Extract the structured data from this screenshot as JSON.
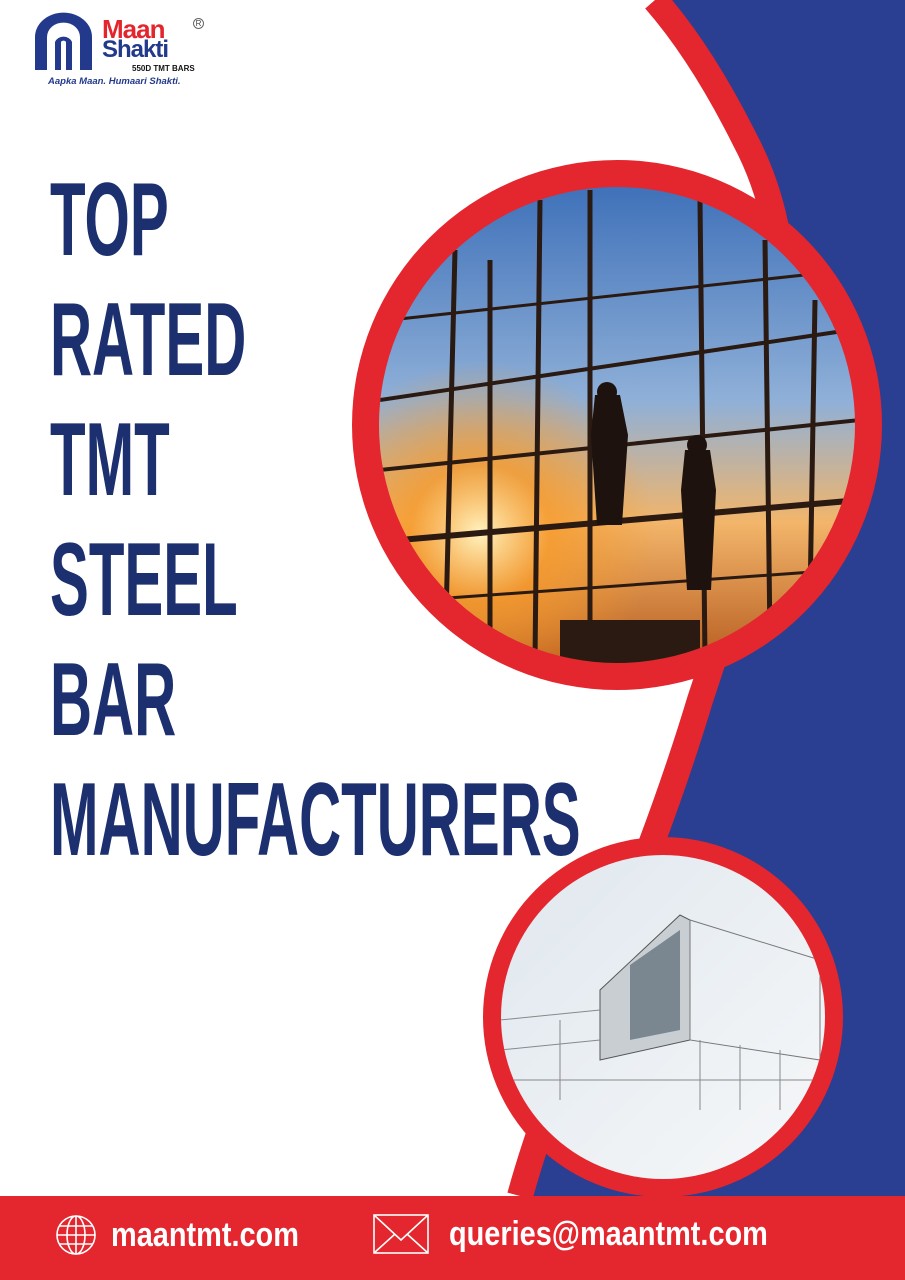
{
  "colors": {
    "navy": "#1c2f6e",
    "blue": "#2a3e92",
    "red": "#e4262e"
  },
  "logo": {
    "brand_line1": "Maan",
    "brand_line2": "Shakti",
    "registered": "R",
    "product": "550D TMT BARS",
    "tagline": "Aapka Maan. Humaari Shakti."
  },
  "headline": [
    "TOP",
    "RATED",
    "TMT",
    "STEEL",
    "BAR",
    "MANUFACTURERS"
  ],
  "images": [
    {
      "subject": "construction-workers-on-scaffolding"
    },
    {
      "subject": "modern-building-sketch"
    }
  ],
  "footer": {
    "website": "maantmt.com",
    "website_icon": "globe-icon",
    "email": "queries@maantmt.com",
    "email_icon": "envelope-icon"
  }
}
